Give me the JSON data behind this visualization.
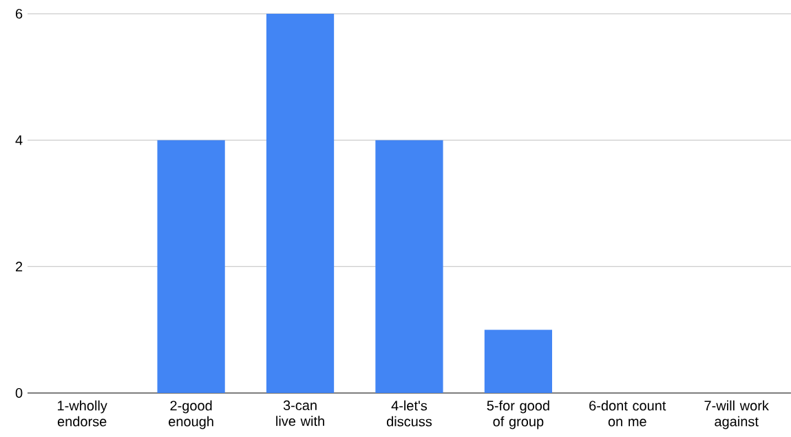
{
  "chart_data": {
    "type": "bar",
    "categories": [
      "1-wholly endorse",
      "2-good enough",
      "3-can live with",
      "4-let's discuss",
      "5-for good of group",
      "6-dont count on me",
      "7-will work against"
    ],
    "values": [
      0,
      4,
      6,
      4,
      1,
      0,
      0
    ],
    "color": "#4285f4",
    "ylim": [
      0,
      6
    ],
    "yticks": [
      0,
      2,
      4,
      6
    ],
    "grid": "y"
  }
}
